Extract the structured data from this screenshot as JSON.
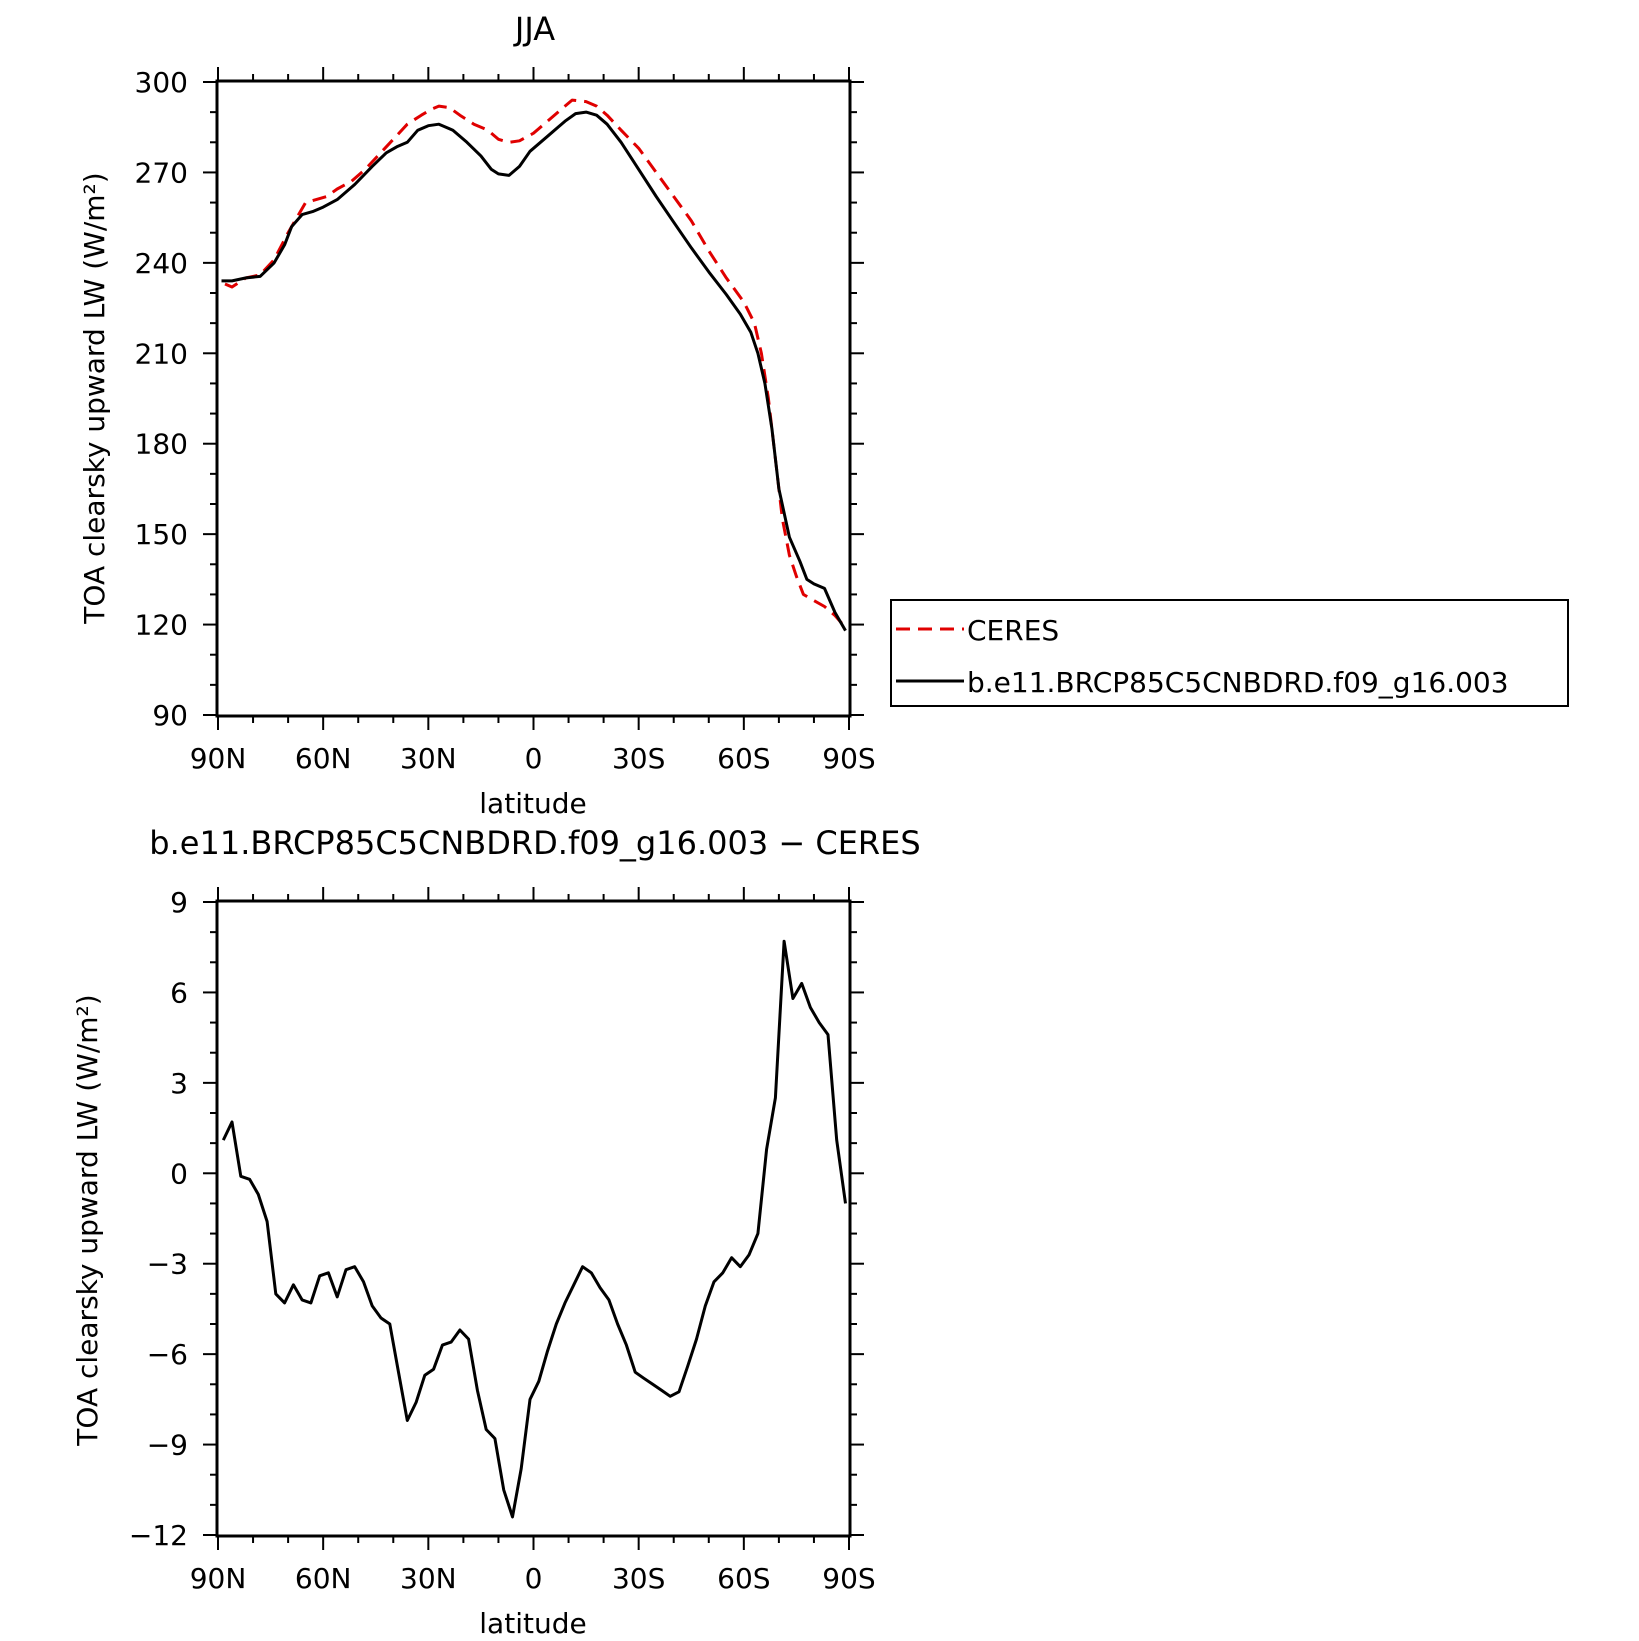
{
  "chart_data": [
    {
      "type": "line",
      "title": "JJA",
      "xlabel": "latitude",
      "ylabel": "TOA clearsky upward LW (W/m²)",
      "xlim": [
        90,
        -90
      ],
      "ylim": [
        90,
        300
      ],
      "x_ticks": [
        90,
        60,
        30,
        0,
        -30,
        -60,
        -90
      ],
      "x_tick_labels": [
        "90N",
        "60N",
        "30N",
        "0",
        "30S",
        "60S",
        "90S"
      ],
      "y_ticks": [
        90,
        120,
        150,
        180,
        210,
        240,
        270,
        300
      ],
      "y_tick_labels": [
        "90",
        "120",
        "150",
        "180",
        "210",
        "240",
        "270",
        "300"
      ],
      "legend": {
        "placement": "right",
        "entries": [
          "CERES",
          "b.e11.BRCP85C5CNBDRD.f09_g16.003"
        ]
      },
      "series": [
        {
          "name": "CERES",
          "color": "#e00000",
          "style": "dashed",
          "points": [
            [
              88,
              233
            ],
            [
              86,
              232
            ],
            [
              82,
              235
            ],
            [
              78,
              236
            ],
            [
              74,
              241
            ],
            [
              70,
              250
            ],
            [
              67,
              256
            ],
            [
              65,
              260
            ],
            [
              62,
              261
            ],
            [
              59,
              262
            ],
            [
              56,
              264.5
            ],
            [
              52,
              267
            ],
            [
              48,
              271
            ],
            [
              44,
              276
            ],
            [
              40,
              281
            ],
            [
              36,
              286
            ],
            [
              32,
              289
            ],
            [
              29,
              291
            ],
            [
              27,
              292
            ],
            [
              24,
              291.5
            ],
            [
              21,
              289
            ],
            [
              17,
              286
            ],
            [
              13,
              284
            ],
            [
              10,
              281
            ],
            [
              7,
              280
            ],
            [
              4,
              280.5
            ],
            [
              0,
              283
            ],
            [
              -4,
              287
            ],
            [
              -8,
              291
            ],
            [
              -11,
              294
            ],
            [
              -15,
              293.5
            ],
            [
              -18,
              292
            ],
            [
              -21,
              289
            ],
            [
              -25,
              284
            ],
            [
              -30,
              278
            ],
            [
              -35,
              270
            ],
            [
              -40,
              262
            ],
            [
              -45,
              254
            ],
            [
              -50,
              244
            ],
            [
              -55,
              235
            ],
            [
              -60,
              227
            ],
            [
              -63,
              220
            ],
            [
              -65,
              210
            ],
            [
              -67,
              195
            ],
            [
              -69,
              175
            ],
            [
              -71,
              155
            ],
            [
              -73,
              143
            ],
            [
              -75,
              136
            ],
            [
              -77,
              130
            ],
            [
              -80,
              128
            ],
            [
              -83,
              126
            ],
            [
              -86,
              123
            ],
            [
              -89,
              119
            ]
          ]
        },
        {
          "name": "b.e11.BRCP85C5CNBDRD.f09_g16.003",
          "color": "#000000",
          "style": "solid",
          "points": [
            [
              89,
              234
            ],
            [
              86,
              234
            ],
            [
              82,
              235
            ],
            [
              78,
              235.5
            ],
            [
              74,
              240
            ],
            [
              71,
              246
            ],
            [
              69,
              252
            ],
            [
              66,
              256
            ],
            [
              63,
              257
            ],
            [
              60,
              258.5
            ],
            [
              56,
              261
            ],
            [
              51,
              266
            ],
            [
              46,
              272
            ],
            [
              42,
              276.5
            ],
            [
              39,
              278.5
            ],
            [
              36,
              280
            ],
            [
              33,
              284
            ],
            [
              30,
              285.5
            ],
            [
              27,
              286
            ],
            [
              23,
              284
            ],
            [
              19,
              280
            ],
            [
              15,
              275.5
            ],
            [
              12,
              271
            ],
            [
              10,
              269.5
            ],
            [
              7,
              269
            ],
            [
              4,
              272
            ],
            [
              1,
              277
            ],
            [
              -4,
              282
            ],
            [
              -9,
              287
            ],
            [
              -12,
              289.5
            ],
            [
              -15,
              290
            ],
            [
              -18,
              289
            ],
            [
              -21,
              286
            ],
            [
              -25,
              280
            ],
            [
              -30,
              271
            ],
            [
              -35,
              262
            ],
            [
              -40,
              253.5
            ],
            [
              -45,
              245
            ],
            [
              -50,
              237
            ],
            [
              -55,
              229.5
            ],
            [
              -59,
              223
            ],
            [
              -62,
              217
            ],
            [
              -64,
              210
            ],
            [
              -66,
              200
            ],
            [
              -68,
              185
            ],
            [
              -70,
              165
            ],
            [
              -73,
              149
            ],
            [
              -76,
              141
            ],
            [
              -78,
              135
            ],
            [
              -80,
              133.5
            ],
            [
              -83,
              132
            ],
            [
              -86,
              124
            ],
            [
              -89,
              118
            ]
          ]
        }
      ]
    },
    {
      "type": "line",
      "title": "b.e11.BRCP85C5CNBDRD.f09_g16.003 − CERES",
      "xlabel": "latitude",
      "ylabel": "TOA clearsky upward LW (W/m²)",
      "xlim": [
        90,
        -90
      ],
      "ylim": [
        -12,
        9
      ],
      "x_ticks": [
        90,
        60,
        30,
        0,
        -30,
        -60,
        -90
      ],
      "x_tick_labels": [
        "90N",
        "60N",
        "30N",
        "0",
        "30S",
        "60S",
        "90S"
      ],
      "y_ticks": [
        -12,
        -9,
        -6,
        -3,
        0,
        3,
        6,
        9
      ],
      "y_tick_labels": [
        "−12",
        "−9",
        "−6",
        "−3",
        "0",
        "3",
        "6",
        "9"
      ],
      "series": [
        {
          "color": "#000000",
          "style": "solid",
          "points": [
            [
              88.5,
              1.1
            ],
            [
              86,
              1.7
            ],
            [
              83.5,
              -0.1
            ],
            [
              81,
              -0.2
            ],
            [
              78.5,
              -0.7
            ],
            [
              76,
              -1.6
            ],
            [
              73.5,
              -4.0
            ],
            [
              71,
              -4.3
            ],
            [
              68.5,
              -3.7
            ],
            [
              66,
              -4.2
            ],
            [
              63.5,
              -4.3
            ],
            [
              61,
              -3.4
            ],
            [
              58.5,
              -3.3
            ],
            [
              56,
              -4.1
            ],
            [
              53.5,
              -3.2
            ],
            [
              51,
              -3.1
            ],
            [
              48.5,
              -3.6
            ],
            [
              46,
              -4.4
            ],
            [
              43.5,
              -4.8
            ],
            [
              41,
              -5.0
            ],
            [
              38.5,
              -6.6
            ],
            [
              36,
              -8.2
            ],
            [
              33.5,
              -7.6
            ],
            [
              31,
              -6.7
            ],
            [
              28.5,
              -6.5
            ],
            [
              26,
              -5.7
            ],
            [
              23.5,
              -5.6
            ],
            [
              21,
              -5.2
            ],
            [
              18.5,
              -5.5
            ],
            [
              16,
              -7.2
            ],
            [
              13.5,
              -8.5
            ],
            [
              11,
              -8.8
            ],
            [
              8.5,
              -10.5
            ],
            [
              6,
              -11.4
            ],
            [
              3.5,
              -9.8
            ],
            [
              1,
              -7.5
            ],
            [
              -1.5,
              -6.9
            ],
            [
              -4,
              -5.9
            ],
            [
              -6.5,
              -5.0
            ],
            [
              -9,
              -4.3
            ],
            [
              -11.5,
              -3.7
            ],
            [
              -14,
              -3.1
            ],
            [
              -16.5,
              -3.3
            ],
            [
              -19,
              -3.8
            ],
            [
              -21.5,
              -4.2
            ],
            [
              -24,
              -5.0
            ],
            [
              -26.5,
              -5.7
            ],
            [
              -29,
              -6.6
            ],
            [
              -31.5,
              -6.8
            ],
            [
              -34,
              -7.0
            ],
            [
              -36.5,
              -7.2
            ],
            [
              -39,
              -7.4
            ],
            [
              -41.5,
              -7.25
            ],
            [
              -44,
              -6.4
            ],
            [
              -46.5,
              -5.5
            ],
            [
              -49,
              -4.4
            ],
            [
              -51.5,
              -3.6
            ],
            [
              -54,
              -3.3
            ],
            [
              -56.5,
              -2.8
            ],
            [
              -59,
              -3.1
            ],
            [
              -61.5,
              -2.7
            ],
            [
              -64,
              -2.0
            ],
            [
              -66.5,
              0.8
            ],
            [
              -69,
              2.5
            ],
            [
              -71.5,
              7.7
            ],
            [
              -74,
              5.8
            ],
            [
              -76.5,
              6.3
            ],
            [
              -79,
              5.5
            ],
            [
              -81.5,
              5.0
            ],
            [
              -84,
              4.6
            ],
            [
              -86.5,
              1.1
            ],
            [
              -89,
              -1.0
            ]
          ]
        }
      ]
    }
  ]
}
